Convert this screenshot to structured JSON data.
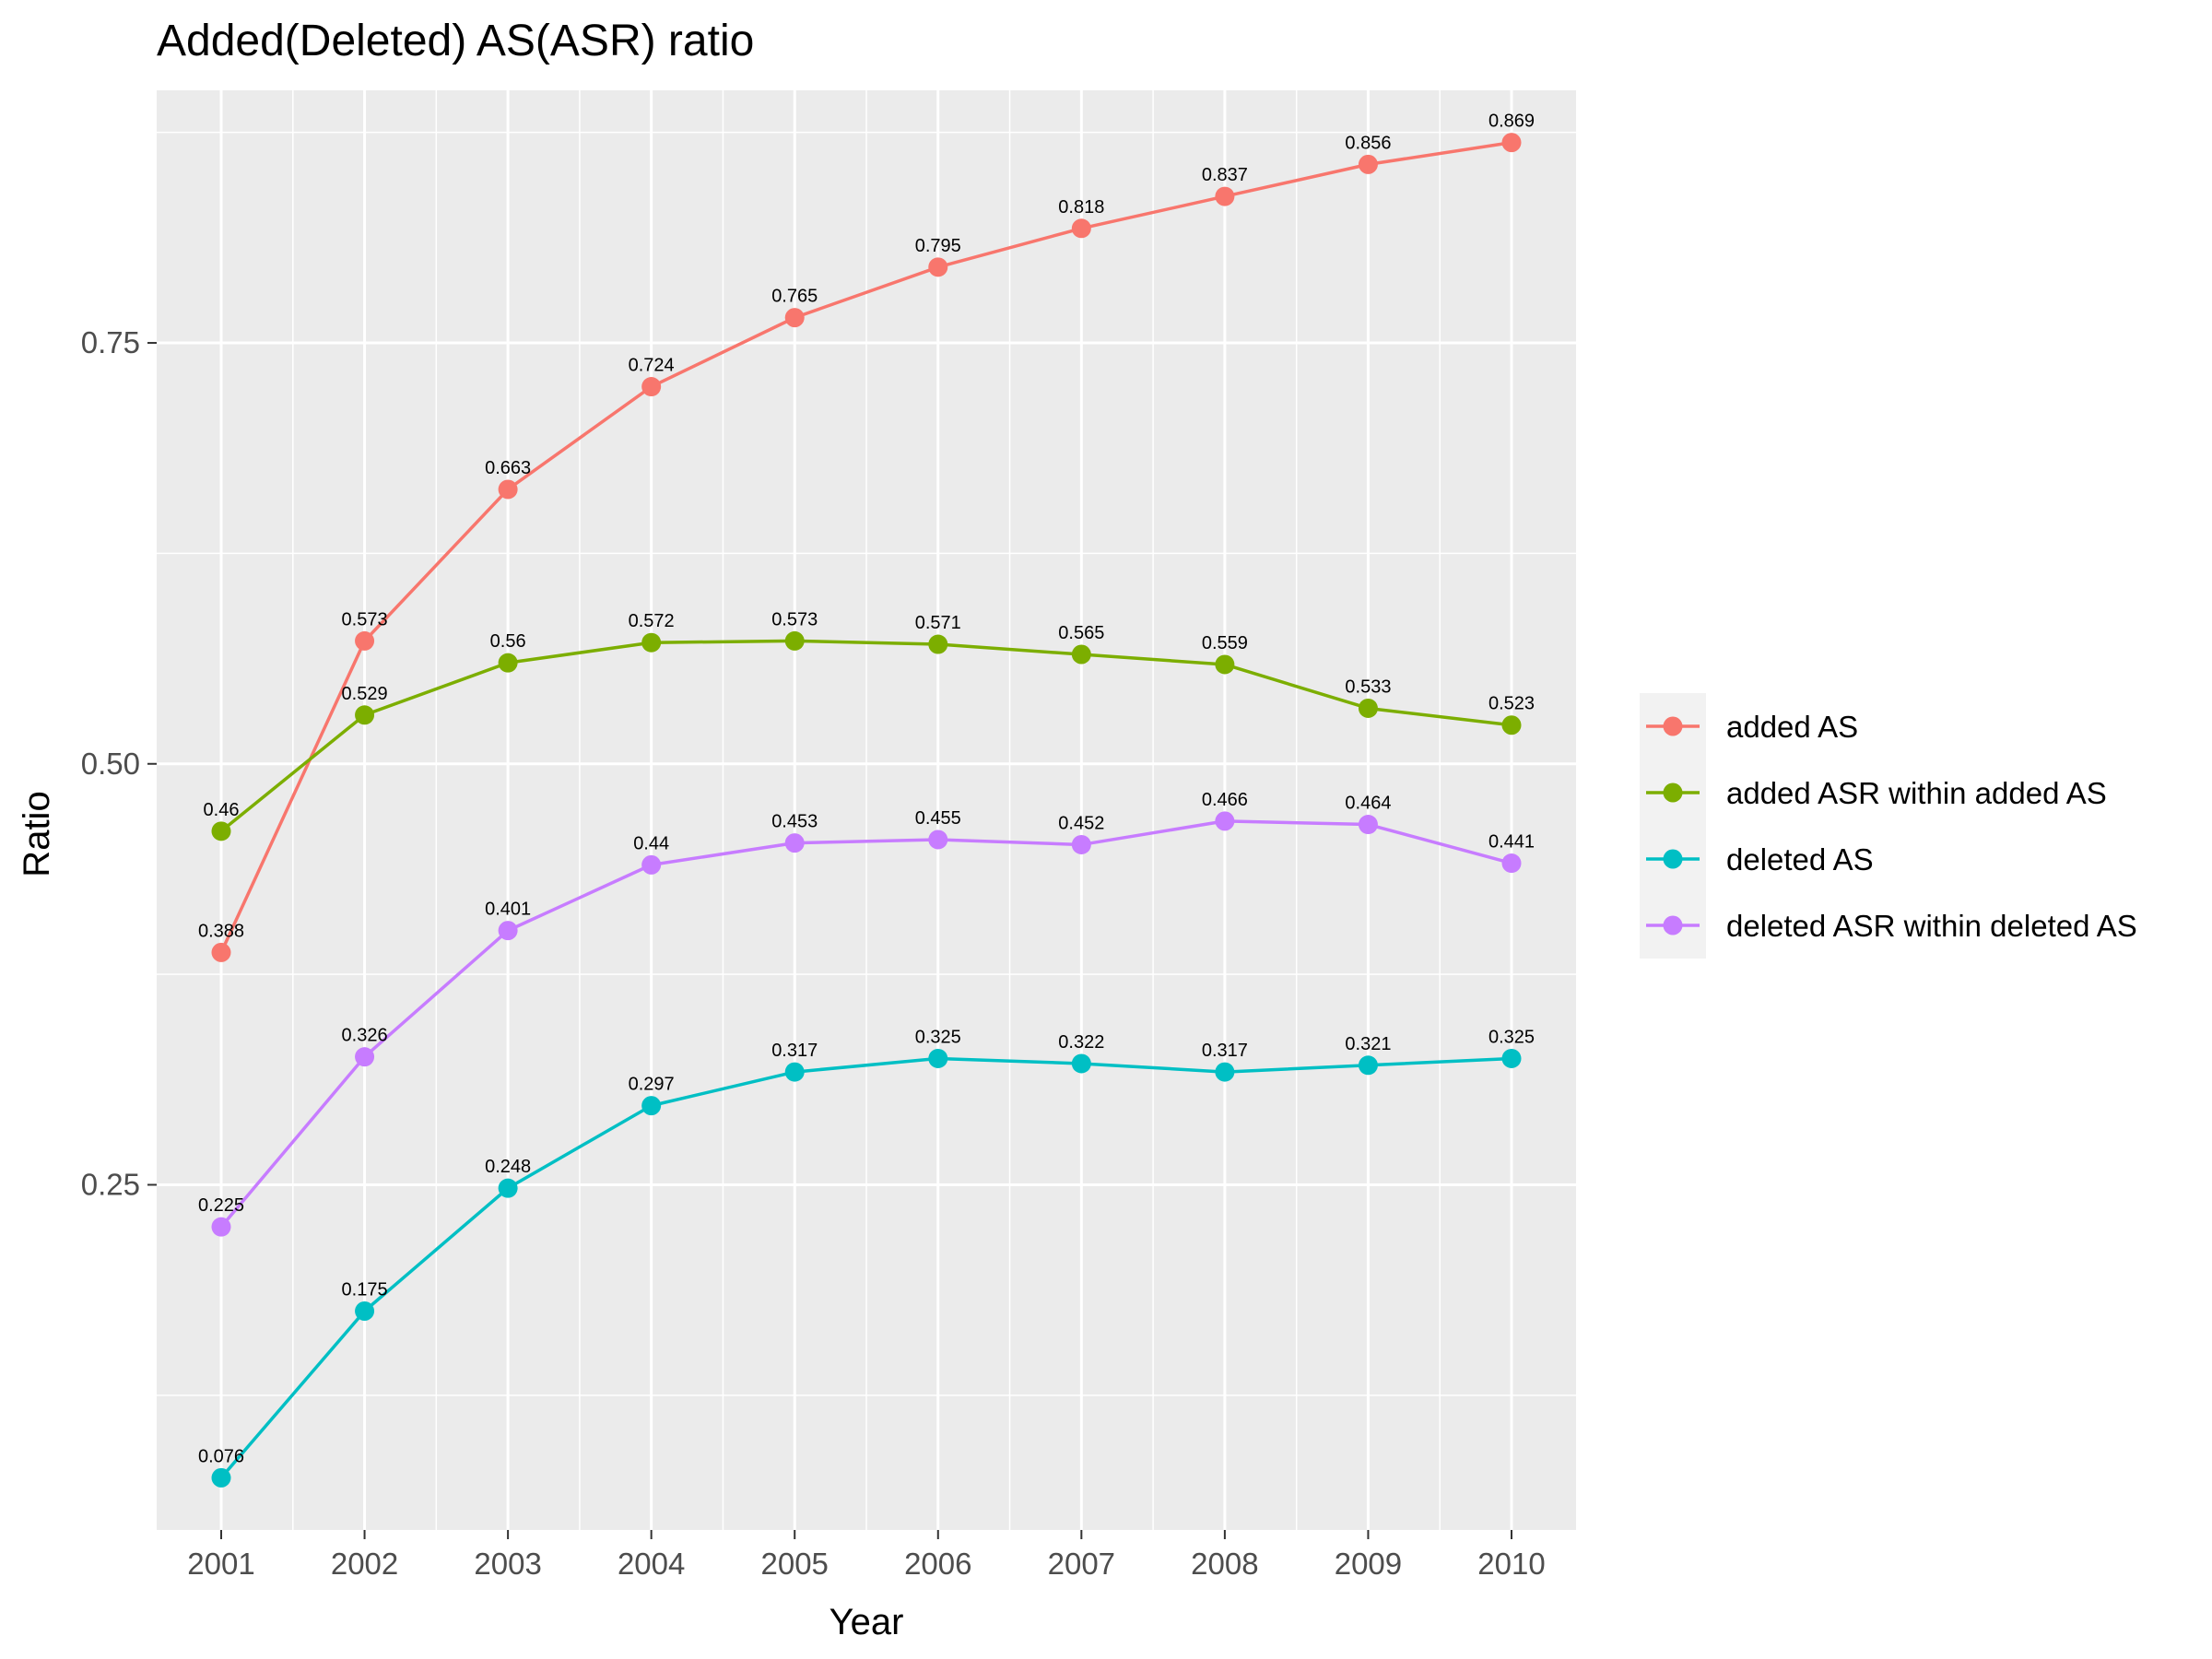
{
  "chart_data": {
    "type": "line",
    "title": "Added(Deleted) AS(ASR) ratio",
    "xlabel": "Year",
    "ylabel": "Ratio",
    "categories": [
      "2001",
      "2002",
      "2003",
      "2004",
      "2005",
      "2006",
      "2007",
      "2008",
      "2009",
      "2010"
    ],
    "ylim": [
      0.045,
      0.9
    ],
    "yticks": [
      0.25,
      0.5,
      0.75
    ],
    "ytick_labels": [
      "0.25",
      "0.50",
      "0.75"
    ],
    "grid": true,
    "legend_position": "right",
    "series": [
      {
        "name": "added AS",
        "color": "#F8766D",
        "values": [
          0.388,
          0.573,
          0.663,
          0.724,
          0.765,
          0.795,
          0.818,
          0.837,
          0.856,
          0.869
        ],
        "labels": [
          "0.388",
          "0.573",
          "0.663",
          "0.724",
          "0.765",
          "0.795",
          "0.818",
          "0.837",
          "0.856",
          "0.869"
        ]
      },
      {
        "name": "added ASR within added AS",
        "color": "#7CAE00",
        "values": [
          0.46,
          0.529,
          0.56,
          0.572,
          0.573,
          0.571,
          0.565,
          0.559,
          0.533,
          0.523
        ],
        "labels": [
          "0.46",
          "0.529",
          "0.56",
          "0.572",
          "0.573",
          "0.571",
          "0.565",
          "0.559",
          "0.533",
          "0.523"
        ]
      },
      {
        "name": "deleted AS",
        "color": "#00BFC4",
        "values": [
          0.076,
          0.175,
          0.248,
          0.297,
          0.317,
          0.325,
          0.322,
          0.317,
          0.321,
          0.325
        ],
        "labels": [
          "0.076",
          "0.175",
          "0.248",
          "0.297",
          "0.317",
          "0.325",
          "0.322",
          "0.317",
          "0.321",
          "0.325"
        ]
      },
      {
        "name": "deleted ASR within deleted AS",
        "color": "#C77CFF",
        "values": [
          0.225,
          0.326,
          0.401,
          0.44,
          0.453,
          0.455,
          0.452,
          0.466,
          0.464,
          0.441
        ],
        "labels": [
          "0.225",
          "0.326",
          "0.401",
          "0.44",
          "0.453",
          "0.455",
          "0.452",
          "0.466",
          "0.464",
          "0.441"
        ]
      }
    ]
  }
}
